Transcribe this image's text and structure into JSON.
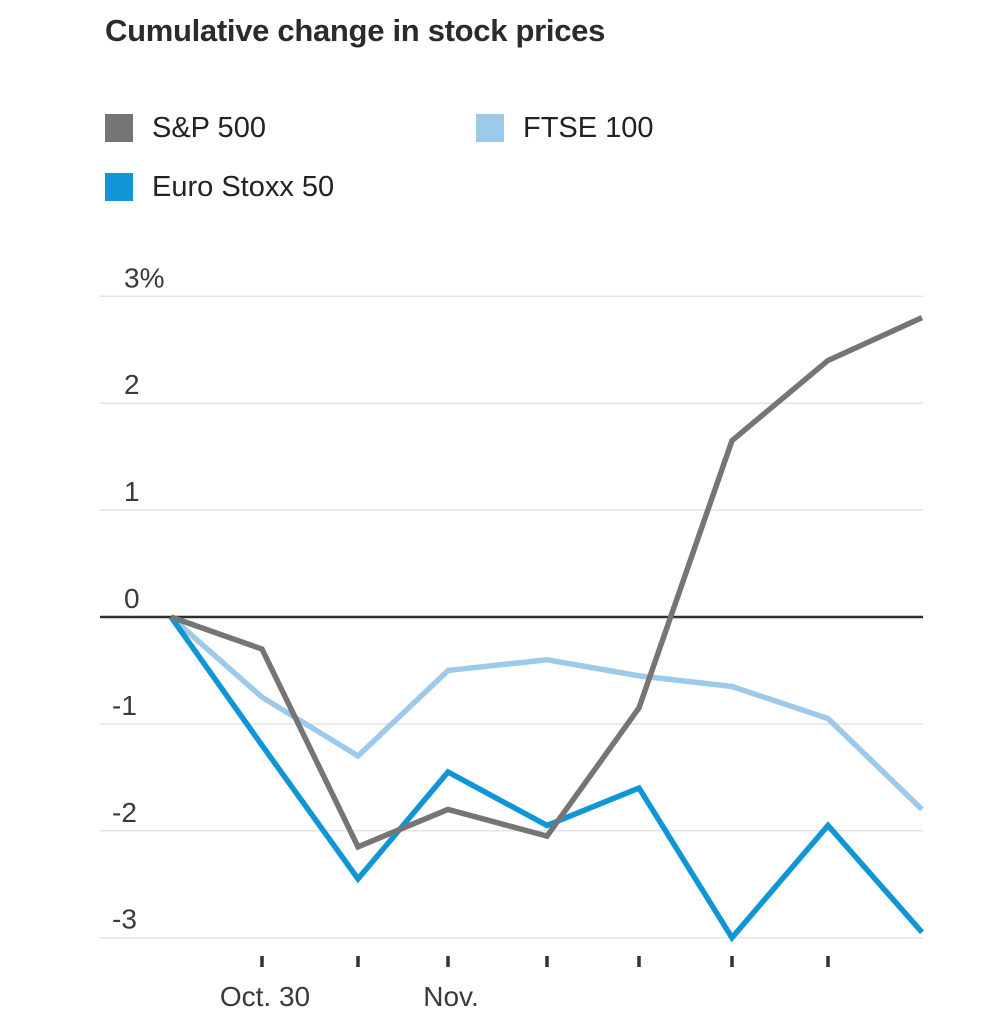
{
  "chart_data": {
    "type": "line",
    "title": "Cumulative change in stock prices",
    "y_unit": "%",
    "ylim": [
      -3.35,
      3.3
    ],
    "grid": "horizontal",
    "zero_baseline": true,
    "legend_position": "top-left two rows",
    "y_ticks": [
      {
        "value": 3,
        "label": "3%"
      },
      {
        "value": 2,
        "label": "2"
      },
      {
        "value": 1,
        "label": "1"
      },
      {
        "value": 0,
        "label": "0"
      },
      {
        "value": -1,
        "label": "-1"
      },
      {
        "value": -2,
        "label": "-2"
      },
      {
        "value": -3,
        "label": "-3"
      }
    ],
    "x_point_count": 9,
    "x_ticks": [
      {
        "point_index": 1,
        "label": "Oct. 30"
      },
      {
        "point_index": 2,
        "label": ""
      },
      {
        "point_index": 3,
        "label": "Nov."
      },
      {
        "point_index": 4,
        "label": ""
      },
      {
        "point_index": 5,
        "label": ""
      },
      {
        "point_index": 6,
        "label": ""
      },
      {
        "point_index": 7,
        "label": ""
      }
    ],
    "series": [
      {
        "name": "S&P 500",
        "color": "#757575",
        "values": [
          0,
          -0.3,
          -2.15,
          -1.8,
          -2.05,
          -0.85,
          1.65,
          2.4,
          2.8
        ]
      },
      {
        "name": "FTSE 100",
        "color": "#9dc9ea",
        "values": [
          0,
          -0.75,
          -1.3,
          -0.5,
          -0.4,
          -0.55,
          -0.65,
          -0.95,
          -1.8
        ]
      },
      {
        "name": "Euro Stoxx 50",
        "color": "#1095d5",
        "values": [
          0,
          -1.2,
          -2.45,
          -1.45,
          -1.95,
          -1.6,
          -3.0,
          -1.95,
          -2.95
        ]
      }
    ],
    "draw_order": [
      "FTSE 100",
      "Euro Stoxx 50",
      "S&P 500"
    ]
  },
  "legend": {
    "items": [
      {
        "label": "S&P 500",
        "color": "#757575"
      },
      {
        "label": "FTSE 100",
        "color": "#9dc9ea"
      },
      {
        "label": "Euro Stoxx 50",
        "color": "#1095d5"
      }
    ]
  }
}
